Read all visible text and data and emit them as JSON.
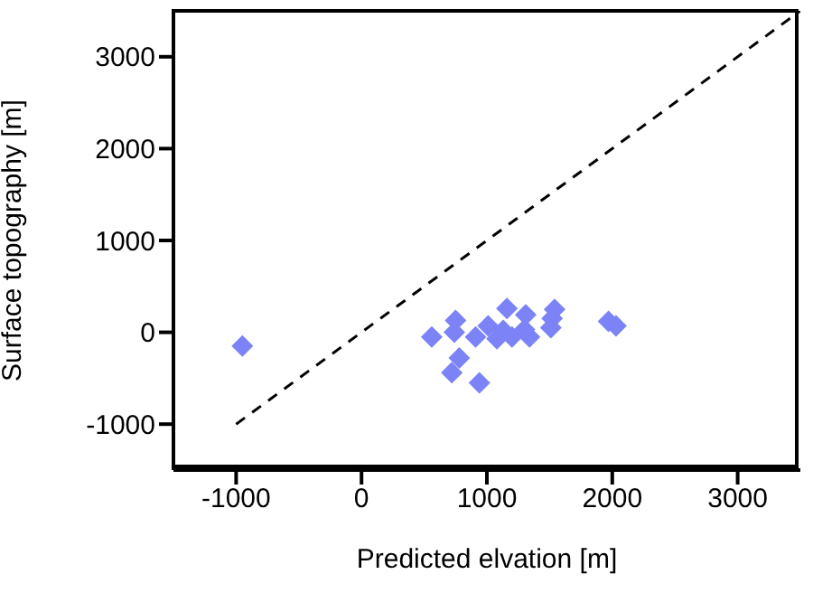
{
  "chart_data": {
    "type": "scatter",
    "xlabel": "Predicted elvation [m]",
    "ylabel": "Surface topography [m]",
    "xlim": [
      -1500,
      3500
    ],
    "ylim": [
      -1500,
      3500
    ],
    "xticks": [
      -1000,
      0,
      1000,
      2000,
      3000
    ],
    "yticks": [
      -1000,
      0,
      1000,
      2000,
      3000
    ],
    "series": [
      {
        "color": "#7b83f7",
        "marker": "diamond",
        "x": [
          -950,
          560,
          750,
          740,
          780,
          720,
          940,
          1010,
          1080,
          1130,
          1160,
          1200,
          1310,
          1340,
          1300,
          1510,
          1520,
          1540,
          1970,
          2030,
          910
        ],
        "values": [
          -150,
          -50,
          130,
          0,
          -280,
          -440,
          -550,
          70,
          -70,
          20,
          260,
          -50,
          190,
          -50,
          30,
          50,
          150,
          250,
          120,
          70,
          -50
        ]
      },
      {
        "type": "line",
        "color": "#000000",
        "marker": "none",
        "line_style": "dashed",
        "x": [
          -1000,
          3500
        ],
        "values": [
          -1000,
          3500
        ]
      }
    ]
  }
}
